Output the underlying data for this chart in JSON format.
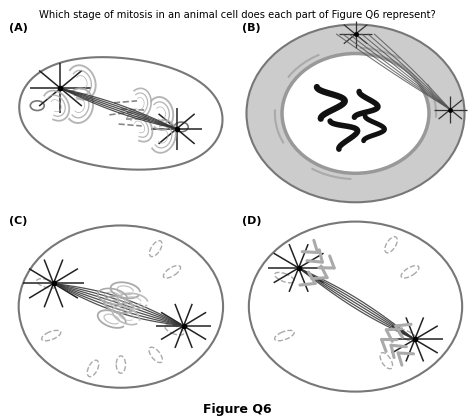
{
  "title": "Which stage of mitosis in an animal cell does each part of Figure Q6 represent?",
  "figure_label": "Figure Q6",
  "panel_labels": [
    "(A)",
    "(B)",
    "(C)",
    "(D)"
  ],
  "bg_color": "#ffffff",
  "cell_edge": "#888888",
  "chrom_gray": "#aaaaaa",
  "chrom_dark": "#111111",
  "spindle_dark": "#333333",
  "envelope_gray": "#bbbbbb",
  "cytoplasm_gray": "#d8d8d8"
}
